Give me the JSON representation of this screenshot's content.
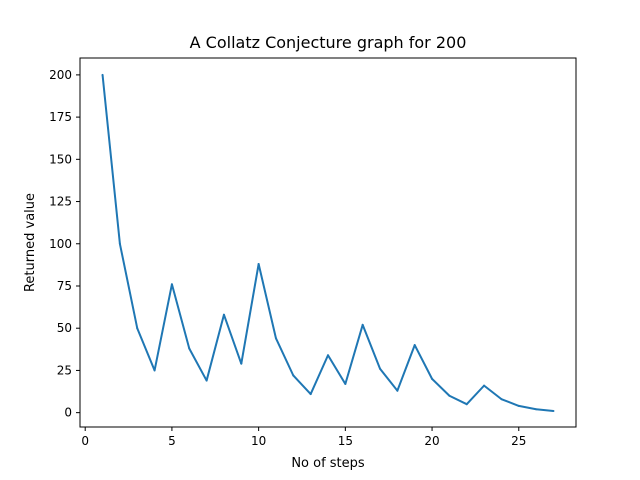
{
  "chart_data": {
    "type": "line",
    "title": "A Collatz Conjecture graph for 200",
    "xlabel": "No of steps",
    "ylabel": "Returned value",
    "xlim": [
      -0.3,
      28.3
    ],
    "ylim": [
      -8.5,
      210
    ],
    "grid": false,
    "legend": "none",
    "line_color": "#1f77b4",
    "x_ticks": [
      0,
      5,
      10,
      15,
      20,
      25
    ],
    "y_ticks": [
      0,
      25,
      50,
      75,
      100,
      125,
      150,
      175,
      200
    ],
    "x_tick_labels": [
      "0",
      "5",
      "10",
      "15",
      "20",
      "25"
    ],
    "y_tick_labels": [
      "0",
      "25",
      "50",
      "75",
      "100",
      "125",
      "150",
      "175",
      "200"
    ],
    "x": [
      1,
      2,
      3,
      4,
      5,
      6,
      7,
      8,
      9,
      10,
      11,
      12,
      13,
      14,
      15,
      16,
      17,
      18,
      19,
      20,
      21,
      22,
      23,
      24,
      25,
      26,
      27
    ],
    "series": [
      {
        "values": [
          200,
          100,
          50,
          25,
          76,
          38,
          19,
          58,
          29,
          88,
          44,
          22,
          11,
          34,
          17,
          52,
          26,
          13,
          40,
          20,
          10,
          5,
          16,
          8,
          4,
          2,
          1
        ]
      }
    ]
  }
}
